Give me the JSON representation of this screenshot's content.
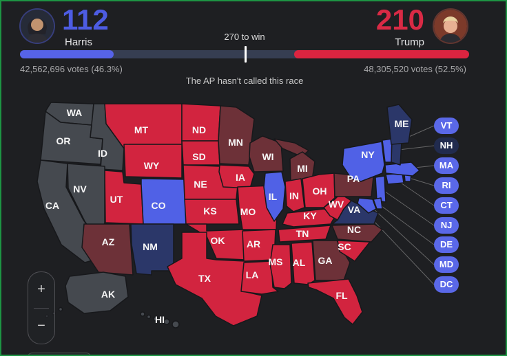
{
  "window": {
    "frame_color": "#1d9443",
    "background": "#1e1f22"
  },
  "header": {
    "target_label": "270 to win",
    "status_text": "The AP hasn't called this race",
    "electoral": {
      "harris": 112,
      "trump": 210,
      "to_win": 270,
      "total": 538
    },
    "harris": {
      "name": "Harris",
      "electoral_votes": "112",
      "votes_text": "42,562,696 votes (46.3%)"
    },
    "trump": {
      "name": "Trump",
      "electoral_votes": "210",
      "votes_text": "48,305,520 votes (52.5%)"
    }
  },
  "colors": {
    "harris": "#5061e6",
    "lean_harris": "#2b3769",
    "trump": "#d2243f",
    "lean_trump": "#6d3138",
    "uncalled": "#45494f",
    "pill_harris": "#5a68e8",
    "pill_lean_harris": "#212b4e",
    "harris_accent": "#4d5ce2",
    "trump_accent": "#d92a45",
    "bar_harris": "#5663e8",
    "bar_trump": "#dc2440",
    "bar_track": "#363e52"
  },
  "chart_data": {
    "type": "choropleth-map",
    "title": "US presidential election results map",
    "legend_categories": [
      "harris",
      "lean_harris",
      "trump",
      "lean_trump",
      "uncalled"
    ],
    "series": [
      {
        "name": "Harris",
        "electoral_votes": 112,
        "popular_votes": 42562696,
        "popular_pct": 46.3
      },
      {
        "name": "Trump",
        "electoral_votes": 210,
        "popular_votes": 48305520,
        "popular_pct": 52.5
      }
    ],
    "threshold": {
      "label": "270 to win",
      "value": 270,
      "total": 538
    }
  },
  "map": {
    "states": {
      "WA": {
        "label": "WA",
        "result": "uncalled"
      },
      "OR": {
        "label": "OR",
        "result": "uncalled"
      },
      "ID": {
        "label": "ID",
        "result": "uncalled"
      },
      "NV": {
        "label": "NV",
        "result": "uncalled"
      },
      "CA": {
        "label": "CA",
        "result": "uncalled"
      },
      "AK": {
        "label": "AK",
        "result": "uncalled"
      },
      "HI": {
        "label": "HI",
        "result": "uncalled"
      },
      "MT": {
        "label": "MT",
        "result": "trump"
      },
      "WY": {
        "label": "WY",
        "result": "trump"
      },
      "UT": {
        "label": "UT",
        "result": "trump"
      },
      "CO": {
        "label": "CO",
        "result": "harris"
      },
      "AZ": {
        "label": "AZ",
        "result": "lean_trump"
      },
      "NM": {
        "label": "NM",
        "result": "lean_harris"
      },
      "ND": {
        "label": "ND",
        "result": "trump"
      },
      "SD": {
        "label": "SD",
        "result": "trump"
      },
      "NE": {
        "label": "NE",
        "result": "trump"
      },
      "KS": {
        "label": "KS",
        "result": "trump"
      },
      "OK": {
        "label": "OK",
        "result": "trump"
      },
      "TX": {
        "label": "TX",
        "result": "trump"
      },
      "MN": {
        "label": "MN",
        "result": "lean_trump"
      },
      "IA": {
        "label": "IA",
        "result": "trump"
      },
      "MO": {
        "label": "MO",
        "result": "trump"
      },
      "AR": {
        "label": "AR",
        "result": "trump"
      },
      "LA": {
        "label": "LA",
        "result": "trump"
      },
      "WI": {
        "label": "WI",
        "result": "lean_trump"
      },
      "IL": {
        "label": "IL",
        "result": "harris"
      },
      "MI": {
        "label": "MI",
        "result": "lean_trump"
      },
      "IN": {
        "label": "IN",
        "result": "trump"
      },
      "OH": {
        "label": "OH",
        "result": "trump"
      },
      "KY": {
        "label": "KY",
        "result": "trump"
      },
      "TN": {
        "label": "TN",
        "result": "trump"
      },
      "MS": {
        "label": "MS",
        "result": "trump"
      },
      "AL": {
        "label": "AL",
        "result": "trump"
      },
      "GA": {
        "label": "GA",
        "result": "lean_trump"
      },
      "FL": {
        "label": "FL",
        "result": "trump"
      },
      "SC": {
        "label": "SC",
        "result": "trump"
      },
      "NC": {
        "label": "NC",
        "result": "lean_trump"
      },
      "VA": {
        "label": "VA",
        "result": "lean_harris"
      },
      "WV": {
        "label": "WV",
        "result": "trump"
      },
      "PA": {
        "label": "PA",
        "result": "lean_trump"
      },
      "NY": {
        "label": "NY",
        "result": "harris"
      },
      "NJ": {
        "label": "NJ",
        "result": "harris"
      },
      "DE": {
        "label": "DE",
        "result": "harris"
      },
      "MD": {
        "label": "MD",
        "result": "harris"
      },
      "CT": {
        "label": "CT",
        "result": "harris"
      },
      "RI": {
        "label": "RI",
        "result": "harris"
      },
      "MA": {
        "label": "MA",
        "result": "harris"
      },
      "VT": {
        "label": "VT",
        "result": "harris"
      },
      "NH": {
        "label": "NH",
        "result": "lean_harris"
      },
      "ME": {
        "label": "ME",
        "result": "lean_harris"
      }
    }
  },
  "pills": [
    {
      "label": "VT",
      "result": "harris"
    },
    {
      "label": "NH",
      "result": "lean_harris"
    },
    {
      "label": "MA",
      "result": "harris"
    },
    {
      "label": "RI",
      "result": "harris"
    },
    {
      "label": "CT",
      "result": "harris"
    },
    {
      "label": "NJ",
      "result": "harris"
    },
    {
      "label": "DE",
      "result": "harris"
    },
    {
      "label": "MD",
      "result": "harris"
    },
    {
      "label": "DC",
      "result": "harris"
    }
  ],
  "zoom_controls": {
    "zoom_in": "+",
    "zoom_out": "−"
  }
}
